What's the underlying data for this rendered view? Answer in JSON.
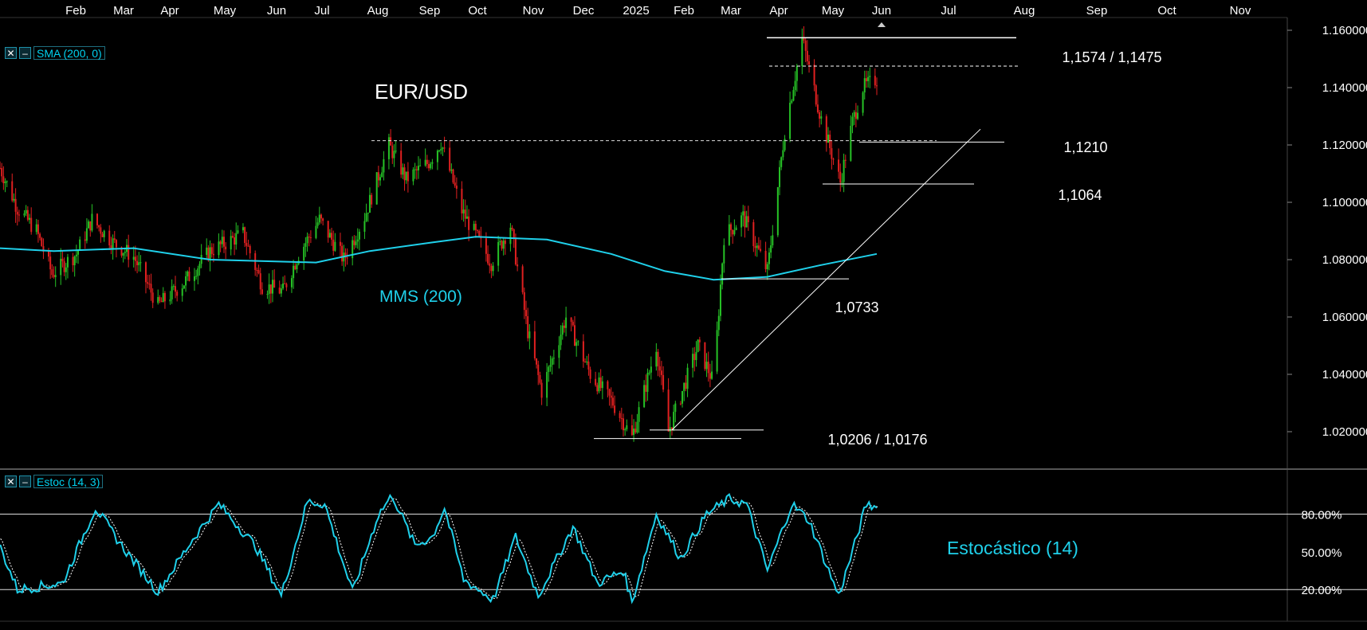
{
  "chart_data": [
    {
      "type": "candlestick",
      "title": "EUR/USD",
      "xlabel": "",
      "ylabel": "",
      "x_ticks": [
        "Feb",
        "Mar",
        "Apr",
        "May",
        "Jun",
        "Jul",
        "Aug",
        "Sep",
        "Oct",
        "Nov",
        "Dec",
        "2025",
        "Feb",
        "Mar",
        "Apr",
        "May",
        "Jun",
        "Jul",
        "Aug",
        "Sep",
        "Oct",
        "Nov"
      ],
      "ylim": [
        1.01,
        1.165
      ],
      "y_ticks": [
        "1.020000",
        "1.040000",
        "1.060000",
        "1.080000",
        "1.100000",
        "1.120000",
        "1.140000",
        "1.160000"
      ],
      "up_color": "#26c226",
      "down_color": "#e02020",
      "price_path": [
        {
          "x": "2024-01-15",
          "y": 1.112
        },
        {
          "x": "2024-01-25",
          "y": 1.098
        },
        {
          "x": "2024-02-05",
          "y": 1.09
        },
        {
          "x": "2024-02-14",
          "y": 1.075
        },
        {
          "x": "2024-02-28",
          "y": 1.082
        },
        {
          "x": "2024-03-08",
          "y": 1.094
        },
        {
          "x": "2024-03-20",
          "y": 1.086
        },
        {
          "x": "2024-04-01",
          "y": 1.081
        },
        {
          "x": "2024-04-15",
          "y": 1.064
        },
        {
          "x": "2024-04-30",
          "y": 1.072
        },
        {
          "x": "2024-05-15",
          "y": 1.083
        },
        {
          "x": "2024-06-03",
          "y": 1.089
        },
        {
          "x": "2024-06-14",
          "y": 1.071
        },
        {
          "x": "2024-06-26",
          "y": 1.069
        },
        {
          "x": "2024-07-05",
          "y": 1.082
        },
        {
          "x": "2024-07-17",
          "y": 1.094
        },
        {
          "x": "2024-07-31",
          "y": 1.08
        },
        {
          "x": "2024-08-12",
          "y": 1.095
        },
        {
          "x": "2024-08-26",
          "y": 1.12
        },
        {
          "x": "2024-09-05",
          "y": 1.108
        },
        {
          "x": "2024-09-18",
          "y": 1.114
        },
        {
          "x": "2024-09-25",
          "y": 1.121
        },
        {
          "x": "2024-10-07",
          "y": 1.097
        },
        {
          "x": "2024-10-24",
          "y": 1.079
        },
        {
          "x": "2024-11-04",
          "y": 1.092
        },
        {
          "x": "2024-11-14",
          "y": 1.055
        },
        {
          "x": "2024-11-22",
          "y": 1.034
        },
        {
          "x": "2024-12-06",
          "y": 1.06
        },
        {
          "x": "2024-12-20",
          "y": 1.04
        },
        {
          "x": "2025-01-02",
          "y": 1.03
        },
        {
          "x": "2025-01-13",
          "y": 1.018
        },
        {
          "x": "2025-01-27",
          "y": 1.05
        },
        {
          "x": "2025-02-03",
          "y": 1.02
        },
        {
          "x": "2025-02-20",
          "y": 1.05
        },
        {
          "x": "2025-03-01",
          "y": 1.037
        },
        {
          "x": "2025-03-07",
          "y": 1.088
        },
        {
          "x": "2025-03-18",
          "y": 1.095
        },
        {
          "x": "2025-04-01",
          "y": 1.076
        },
        {
          "x": "2025-04-11",
          "y": 1.125
        },
        {
          "x": "2025-04-21",
          "y": 1.157
        },
        {
          "x": "2025-05-02",
          "y": 1.129
        },
        {
          "x": "2025-05-13",
          "y": 1.107
        },
        {
          "x": "2025-05-20",
          "y": 1.128
        },
        {
          "x": "2025-05-26",
          "y": 1.14
        },
        {
          "x": "2025-06-03",
          "y": 1.143
        }
      ],
      "sma_200": [
        {
          "x": "2024-01-01",
          "y": 1.084
        },
        {
          "x": "2024-02-15",
          "y": 1.083
        },
        {
          "x": "2024-04-01",
          "y": 1.084
        },
        {
          "x": "2024-05-15",
          "y": 1.08
        },
        {
          "x": "2024-07-15",
          "y": 1.079
        },
        {
          "x": "2024-08-15",
          "y": 1.083
        },
        {
          "x": "2024-09-20",
          "y": 1.086
        },
        {
          "x": "2024-10-15",
          "y": 1.088
        },
        {
          "x": "2024-11-25",
          "y": 1.087
        },
        {
          "x": "2025-01-01",
          "y": 1.082
        },
        {
          "x": "2025-02-01",
          "y": 1.076
        },
        {
          "x": "2025-03-01",
          "y": 1.073
        },
        {
          "x": "2025-04-01",
          "y": 1.074
        },
        {
          "x": "2025-05-01",
          "y": 1.078
        },
        {
          "x": "2025-06-03",
          "y": 1.082
        }
      ],
      "sma_label": "MMS (200)",
      "sma_color": "#1fd0ea",
      "panel_label": "SMA (200, 0)",
      "levels": [
        {
          "label": "1,1574 / 1,1475",
          "values": [
            1.1574,
            1.1475
          ]
        },
        {
          "label": "1,1210",
          "values": [
            1.121
          ]
        },
        {
          "label": "1,1064",
          "values": [
            1.1064
          ]
        },
        {
          "label": "1,0733",
          "values": [
            1.0733
          ]
        },
        {
          "label": "1,0206 / 1,0176",
          "values": [
            1.0206,
            1.0176
          ]
        }
      ],
      "trendline": [
        {
          "x": "2025-02-03",
          "y": 1.0206
        },
        {
          "x": "2025-06-15",
          "y": 1.125
        }
      ]
    },
    {
      "type": "line",
      "title": "Estocástico (14)",
      "panel_label": "Estoc (14, 3)",
      "ylim": [
        0,
        100
      ],
      "y_ticks": [
        "80.00%",
        "50.00%",
        "20.00%"
      ],
      "lines": [
        80,
        20
      ],
      "color": "#1fd0ea",
      "series_k": [
        {
          "x": "2024-01-03",
          "y": 95
        },
        {
          "x": "2024-01-25",
          "y": 20
        },
        {
          "x": "2024-02-20",
          "y": 25
        },
        {
          "x": "2024-03-10",
          "y": 85
        },
        {
          "x": "2024-03-25",
          "y": 55
        },
        {
          "x": "2024-04-15",
          "y": 18
        },
        {
          "x": "2024-05-05",
          "y": 60
        },
        {
          "x": "2024-05-20",
          "y": 88
        },
        {
          "x": "2024-06-10",
          "y": 55
        },
        {
          "x": "2024-06-25",
          "y": 15
        },
        {
          "x": "2024-07-10",
          "y": 90
        },
        {
          "x": "2024-07-20",
          "y": 88
        },
        {
          "x": "2024-08-05",
          "y": 18
        },
        {
          "x": "2024-08-20",
          "y": 80
        },
        {
          "x": "2024-08-28",
          "y": 95
        },
        {
          "x": "2024-09-10",
          "y": 55
        },
        {
          "x": "2024-09-20",
          "y": 62
        },
        {
          "x": "2024-09-27",
          "y": 85
        },
        {
          "x": "2024-10-08",
          "y": 28
        },
        {
          "x": "2024-10-25",
          "y": 12
        },
        {
          "x": "2024-11-07",
          "y": 62
        },
        {
          "x": "2024-11-20",
          "y": 15
        },
        {
          "x": "2024-12-10",
          "y": 70
        },
        {
          "x": "2024-12-24",
          "y": 25
        },
        {
          "x": "2025-01-08",
          "y": 35
        },
        {
          "x": "2025-01-13",
          "y": 10
        },
        {
          "x": "2025-01-27",
          "y": 80
        },
        {
          "x": "2025-02-10",
          "y": 45
        },
        {
          "x": "2025-02-25",
          "y": 80
        },
        {
          "x": "2025-03-10",
          "y": 92
        },
        {
          "x": "2025-03-20",
          "y": 88
        },
        {
          "x": "2025-04-01",
          "y": 35
        },
        {
          "x": "2025-04-15",
          "y": 88
        },
        {
          "x": "2025-04-25",
          "y": 75
        },
        {
          "x": "2025-05-12",
          "y": 15
        },
        {
          "x": "2025-05-20",
          "y": 50
        },
        {
          "x": "2025-05-28",
          "y": 88
        },
        {
          "x": "2025-06-03",
          "y": 85
        }
      ]
    }
  ]
}
